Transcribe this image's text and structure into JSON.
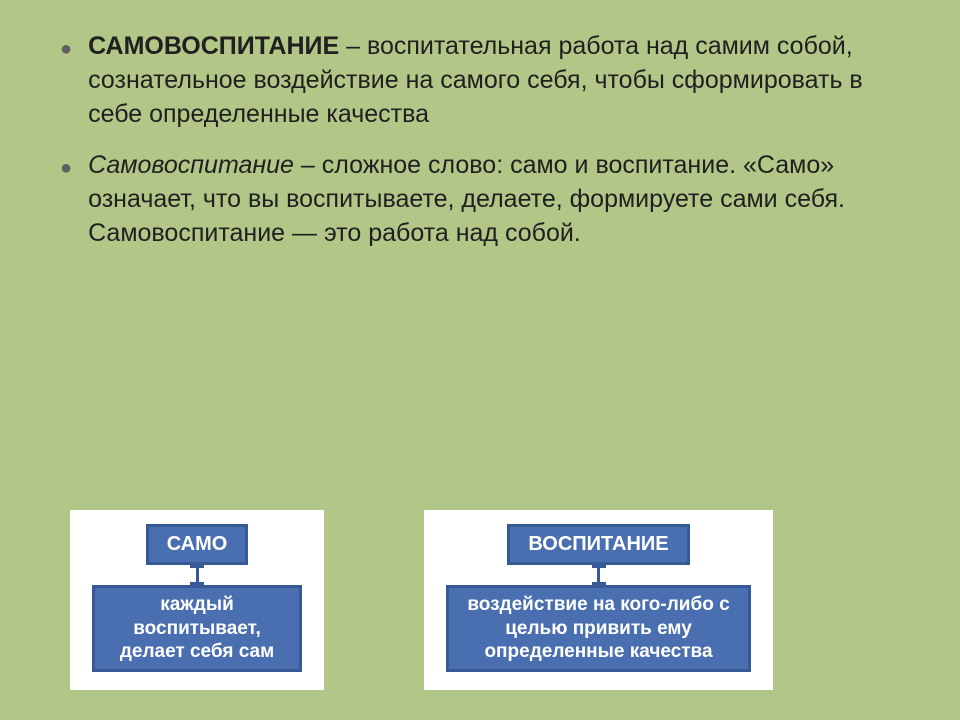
{
  "background_color": "#b1c687",
  "text_color": "#202020",
  "bullet_color": "#606060",
  "body_fontsize": 25,
  "bullets": [
    {
      "lead_bold": "САМОВОСПИТАНИЕ",
      "rest": " – воспитательная работа над самим собой, сознательное воздействие на самого себя, чтобы сформировать в себе определенные качества",
      "lead_style": "bold"
    },
    {
      "lead_bold": "Самовоспитание",
      "rest": " – сложное слово: само и воспитание. «Само» означает, что вы воспитываете, делаете, формируете сами себя. Самовоспитание — это работа над собой.",
      "lead_style": "italic"
    }
  ],
  "box_header_bg": "#4a6fb0",
  "box_header_border": "#365a96",
  "box_header_text_color": "#ffffff",
  "card_bg": "#ffffff",
  "diagrams": [
    {
      "header": "САМО",
      "desc": "каждый воспитывает, делает себя сам"
    },
    {
      "header": "ВОСПИТАНИЕ",
      "desc": "воздействие на кого-либо с целью привить ему определенные качества"
    }
  ]
}
